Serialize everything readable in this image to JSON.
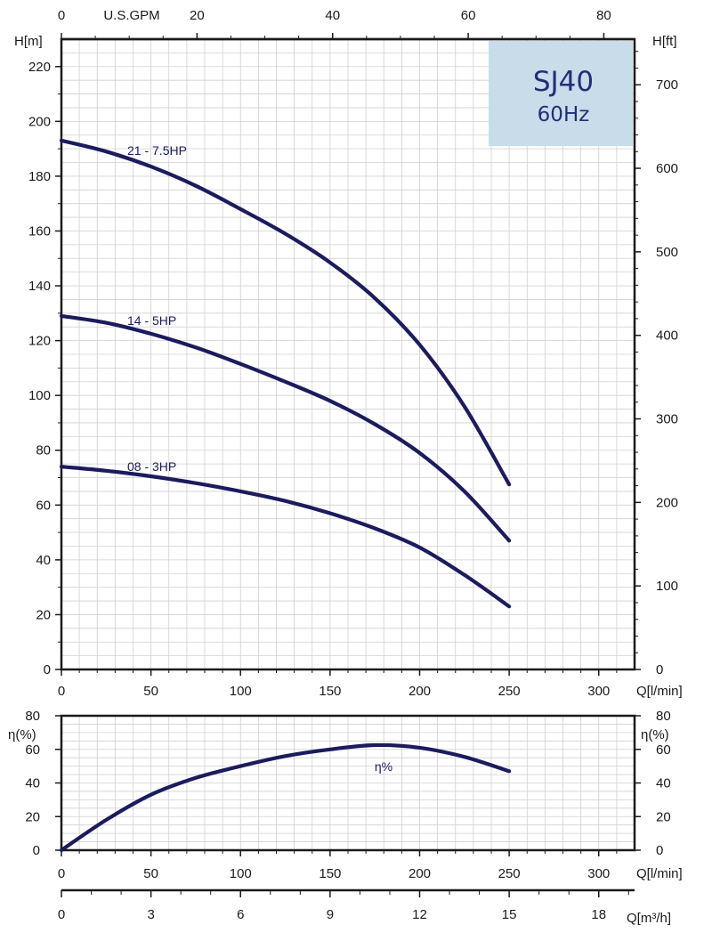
{
  "chart_data": [
    {
      "type": "line",
      "panel": "head",
      "title": "SJ40",
      "subtitle": "60Hz",
      "xlabel": "Q[l/min]",
      "ylabel": "H[m]",
      "ylabel_right": "H[ft]",
      "xlabel_top": "U.S.GPM",
      "xlim": [
        0,
        320
      ],
      "ylim": [
        0,
        230
      ],
      "x_ticks": [
        0,
        50,
        100,
        150,
        200,
        250,
        300
      ],
      "x_tick_labels": [
        "0",
        "50",
        "100",
        "150",
        "200",
        "250",
        "300"
      ],
      "y_ticks": [
        0,
        20,
        40,
        60,
        80,
        100,
        120,
        140,
        160,
        180,
        200,
        220
      ],
      "y_tick_labels": [
        "0",
        "20",
        "40",
        "60",
        "80",
        "100",
        "120",
        "140",
        "160",
        "180",
        "200",
        "220"
      ],
      "top_ticks": [
        0,
        20,
        40,
        60,
        80
      ],
      "top_tick_labels": [
        "0",
        "20",
        "40",
        "60",
        "80"
      ],
      "right_ticks": [
        0,
        100,
        200,
        300,
        400,
        500,
        600,
        700
      ],
      "right_tick_labels": [
        "0",
        "100",
        "200",
        "300",
        "400",
        "500",
        "600",
        "700"
      ],
      "grid": true,
      "series": [
        {
          "name": "21 - 7.5HP",
          "x": [
            0,
            25,
            50,
            75,
            100,
            125,
            150,
            175,
            200,
            225,
            250
          ],
          "values": [
            193,
            189,
            183.5,
            176.5,
            168,
            159,
            148.5,
            135.5,
            118.5,
            96,
            67.5
          ]
        },
        {
          "name": "14 - 5HP",
          "x": [
            0,
            25,
            50,
            75,
            100,
            125,
            150,
            175,
            200,
            225,
            250
          ],
          "values": [
            129,
            126.5,
            122.5,
            117.5,
            111.5,
            105,
            98,
            89.5,
            79,
            65,
            47
          ]
        },
        {
          "name": "08 - 3HP",
          "x": [
            0,
            25,
            50,
            75,
            100,
            125,
            150,
            175,
            200,
            225,
            250
          ],
          "values": [
            74,
            72.5,
            70.5,
            68,
            65,
            61.5,
            57,
            51.5,
            44.5,
            34.5,
            23
          ]
        }
      ]
    },
    {
      "type": "line",
      "panel": "efficiency",
      "xlabel": "Q[l/min]",
      "ylabel": "η(%)",
      "xlim": [
        0,
        320
      ],
      "ylim": [
        0,
        80
      ],
      "x_ticks": [
        0,
        50,
        100,
        150,
        200,
        250,
        300
      ],
      "x_tick_labels": [
        "0",
        "50",
        "100",
        "150",
        "200",
        "250",
        "300"
      ],
      "y_ticks": [
        0,
        20,
        40,
        60,
        80
      ],
      "y_tick_labels": [
        "0",
        "20",
        "40",
        "60",
        "80"
      ],
      "grid": true,
      "series": [
        {
          "name": "η%",
          "x": [
            0,
            25,
            50,
            75,
            100,
            125,
            150,
            175,
            200,
            225,
            250
          ],
          "values": [
            0,
            18,
            33,
            43,
            50,
            56,
            60,
            62.5,
            61,
            55.5,
            47
          ]
        }
      ]
    },
    {
      "type": "axis",
      "panel": "flow-m3h",
      "xlabel": "Q[m³/h]",
      "xlim": [
        0,
        19.2
      ],
      "x_ticks": [
        0,
        3,
        6,
        9,
        12,
        15,
        18
      ],
      "x_tick_labels": [
        "0",
        "3",
        "6",
        "9",
        "12",
        "15",
        "18"
      ]
    }
  ],
  "colors": {
    "curve": "#1b1b5e",
    "grid": "#d0d0d0",
    "axis": "#1a1a1a",
    "title_bg": "#c9dcea",
    "title_text": "#1f2f7a"
  }
}
